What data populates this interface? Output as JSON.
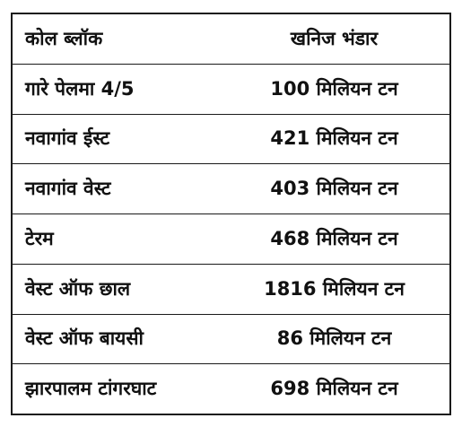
{
  "table": {
    "headers": {
      "block": "कोल ब्लॉक",
      "reserve": "खनिज भंडार"
    },
    "rows": [
      {
        "block": "गारे पेलमा 4/5",
        "reserve": "100 मिलियन टन"
      },
      {
        "block": "नवागांव ईस्ट",
        "reserve": "421 मिलियन टन"
      },
      {
        "block": "नवागांव वेस्ट",
        "reserve": "403 मिलियन टन"
      },
      {
        "block": "टेरम",
        "reserve": "468 मिलियन टन"
      },
      {
        "block": "वेस्ट ऑफ छाल",
        "reserve": "1816 मिलियन टन"
      },
      {
        "block": "वेस्ट ऑफ बायसी",
        "reserve": "86 मिलियन टन"
      },
      {
        "block": "झारपालम टांगरघाट",
        "reserve": "698 मिलियन टन"
      }
    ]
  }
}
